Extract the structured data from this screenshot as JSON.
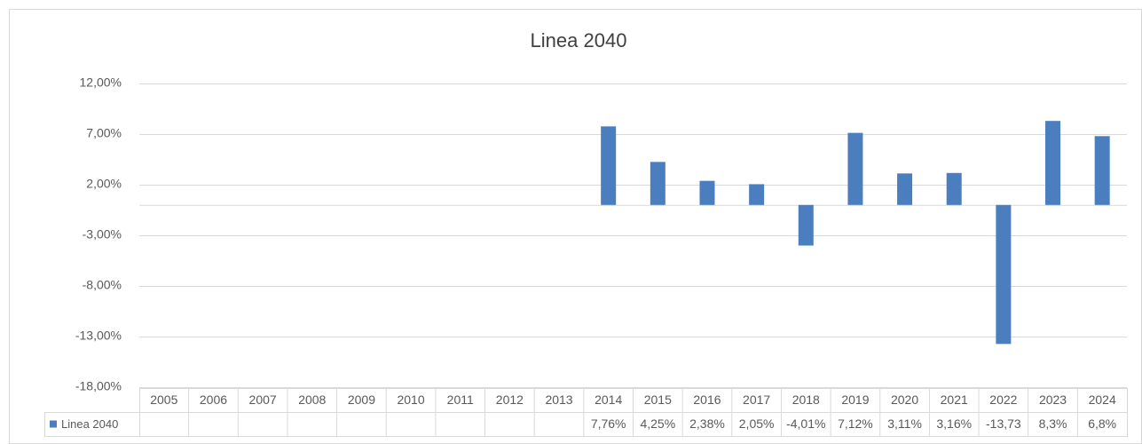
{
  "chart_data": {
    "type": "bar",
    "title": "Linea 2040",
    "categories": [
      "2005",
      "2006",
      "2007",
      "2008",
      "2009",
      "2010",
      "2011",
      "2012",
      "2013",
      "2014",
      "2015",
      "2016",
      "2017",
      "2018",
      "2019",
      "2020",
      "2021",
      "2022",
      "2023",
      "2024"
    ],
    "series": [
      {
        "name": "Linea 2040",
        "color": "#4a7ebf",
        "values": [
          null,
          null,
          null,
          null,
          null,
          null,
          null,
          null,
          null,
          7.76,
          4.25,
          2.38,
          2.05,
          -4.01,
          7.12,
          3.11,
          3.16,
          -13.73,
          8.3,
          6.8
        ],
        "value_labels": [
          null,
          null,
          null,
          null,
          null,
          null,
          null,
          null,
          null,
          "7,76%",
          "4,25%",
          "2,38%",
          "2,05%",
          "-4,01%",
          "7,12%",
          "3,11%",
          "3,16%",
          "-13,73",
          "8,3%",
          "6,8%"
        ]
      }
    ],
    "ylim": [
      -18,
      12
    ],
    "yticks": [
      {
        "value": -18,
        "label": "-18,00%"
      },
      {
        "value": -13,
        "label": "-13,00%"
      },
      {
        "value": -8,
        "label": "-8,00%"
      },
      {
        "value": -3,
        "label": "-3,00%"
      },
      {
        "value": 2,
        "label": "2,00%"
      },
      {
        "value": 7,
        "label": "7,00%"
      },
      {
        "value": 12,
        "label": "12,00%"
      }
    ],
    "grid": true
  }
}
